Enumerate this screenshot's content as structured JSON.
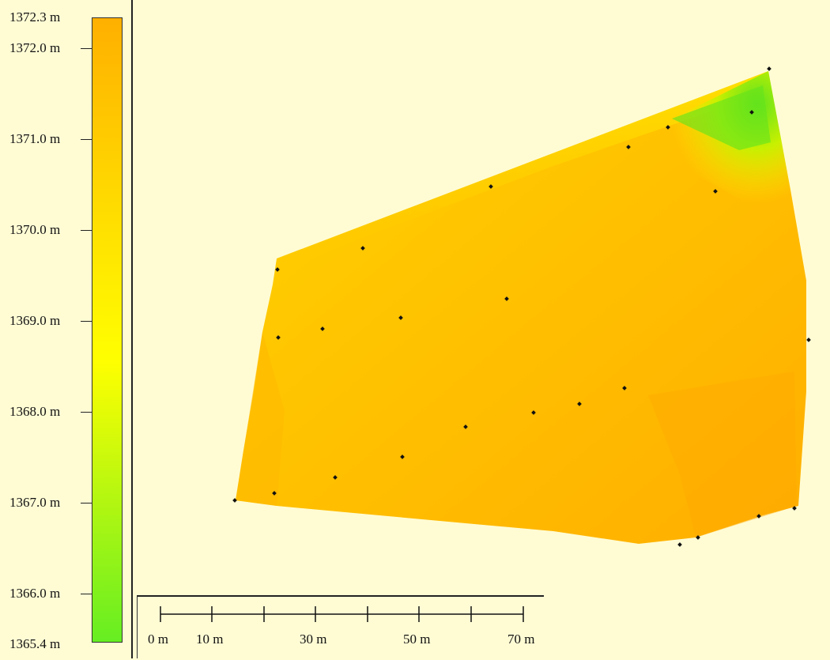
{
  "legend": {
    "ticks": [
      {
        "label": "1372.3 m",
        "value": 1372.3
      },
      {
        "label": "1372.0 m",
        "value": 1372.0
      },
      {
        "label": "1371.0 m",
        "value": 1371.0
      },
      {
        "label": "1370.0 m",
        "value": 1370.0
      },
      {
        "label": "1369.0 m",
        "value": 1369.0
      },
      {
        "label": "1368.0 m",
        "value": 1368.0
      },
      {
        "label": "1367.0 m",
        "value": 1367.0
      },
      {
        "label": "1366.0 m",
        "value": 1366.0
      },
      {
        "label": "1365.4 m",
        "value": 1365.4
      }
    ],
    "range": [
      1365.4,
      1372.3
    ],
    "colors": {
      "low": "#66ee22",
      "mid": "#ffff00",
      "high": "#ffb000"
    }
  },
  "scale_bar": {
    "labels": [
      "0 m",
      "10 m",
      "30 m",
      "50 m",
      "70 m"
    ]
  },
  "colors": {
    "background": "#fffcd4",
    "surface_main": "#ffc400",
    "surface_dark": "#ffad00",
    "surface_light": "#ffe600",
    "surface_low": "#6ee41e",
    "point": "#111111"
  }
}
